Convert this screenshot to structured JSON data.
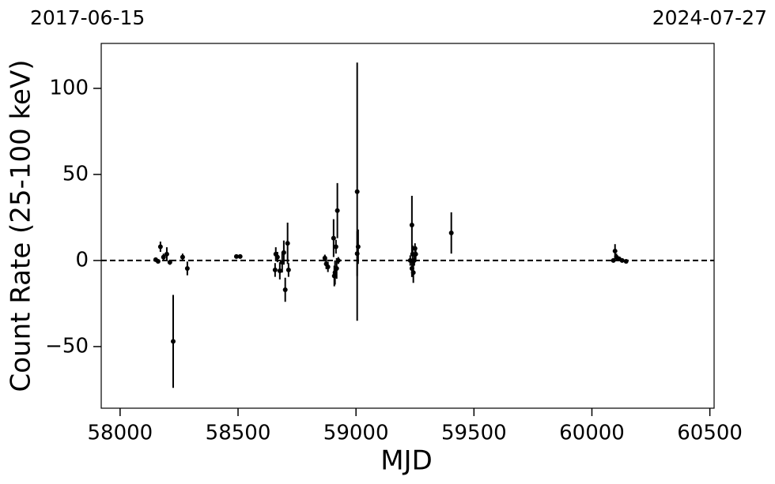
{
  "chart_data": {
    "type": "errorbar",
    "xlabel": "MJD",
    "ylabel": "Count Rate (25-100 keV)",
    "annotations": [
      "2017-06-15",
      "2024-07-27"
    ],
    "xlim": [
      57920,
      60518
    ],
    "ylim": [
      -85.8,
      126.1
    ],
    "xticks": [
      58000,
      58500,
      59000,
      59500,
      60000,
      60500
    ],
    "yticks": [
      {
        "value": -50,
        "label": "−50"
      },
      0,
      50,
      100
    ],
    "hline": 0,
    "color": "#000000",
    "x": [
      58151,
      58161,
      58171,
      58184,
      58198,
      58211,
      58225,
      58265,
      58285,
      58493,
      58509,
      58657,
      58660,
      58667,
      58677,
      58687,
      58694,
      58700,
      58710,
      58714,
      58868,
      58874,
      58881,
      58905,
      58908,
      58911,
      58915,
      58918,
      58921,
      58925,
      59005,
      59009,
      59005,
      59230,
      59237,
      59237,
      59240,
      59243,
      59247,
      59250,
      59253,
      59404,
      60091,
      60098,
      60104,
      60115,
      60128,
      60145
    ],
    "values": [
      0.5,
      -0.5,
      8,
      2,
      3.7,
      -1,
      -47,
      2,
      -4.6,
      2.3,
      2.3,
      -5.5,
      3.7,
      2,
      -6,
      -1,
      4.6,
      -17,
      10,
      -5.5,
      1.4,
      -2,
      -3.7,
      13,
      -9,
      -7,
      8,
      -4.6,
      29,
      0,
      40,
      8,
      4,
      0,
      20.6,
      -4.6,
      3.7,
      -7,
      0,
      7,
      3.7,
      16,
      0,
      5.5,
      2,
      1,
      0,
      -0.5
    ],
    "errors": [
      1,
      1,
      3,
      2,
      4,
      1.5,
      27,
      2,
      4,
      1,
      1,
      4,
      4,
      3,
      5,
      6,
      7,
      7,
      12,
      4,
      2,
      3,
      3,
      11,
      6,
      7,
      4,
      6,
      16,
      2,
      75,
      10,
      13,
      3,
      17,
      5,
      5,
      6,
      3,
      3,
      3,
      12,
      1,
      4,
      2,
      1,
      1,
      1
    ]
  }
}
